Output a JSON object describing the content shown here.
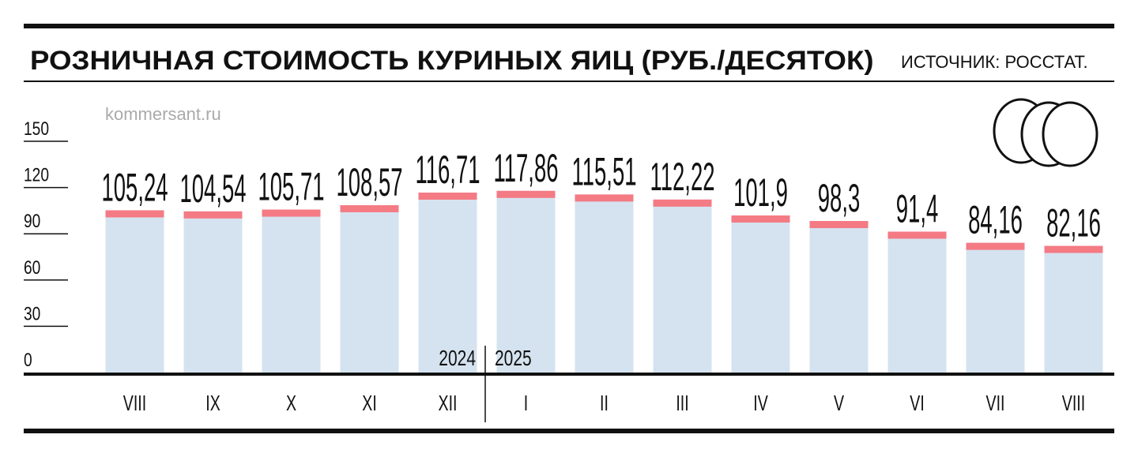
{
  "chart_data": {
    "type": "bar",
    "title": "РОЗНИЧНАЯ СТОИМОСТЬ КУРИНЫХ ЯИЦ (РУБ./ДЕСЯТОК)",
    "source": "ИСТОЧНИК: РОССТАТ.",
    "watermark": "kommersant.ru",
    "categories": [
      "VIII",
      "IX",
      "X",
      "XI",
      "XII",
      "I",
      "II",
      "III",
      "IV",
      "V",
      "VI",
      "VII",
      "VIII"
    ],
    "periods": [
      "2024",
      "2025"
    ],
    "values": [
      105.24,
      104.54,
      105.71,
      108.57,
      116.71,
      117.86,
      115.51,
      112.22,
      101.9,
      98.3,
      91.4,
      84.16,
      82.16
    ],
    "value_labels": [
      "105,24",
      "104,54",
      "105,71",
      "108,57",
      "116,71",
      "117,86",
      "115,51",
      "112,22",
      "101,9",
      "98,3",
      "91,4",
      "84,16",
      "82,16"
    ],
    "color": "#d5e3f0",
    "cap_color": "#f47a84",
    "ylim": [
      0,
      150
    ],
    "yticks": [
      0,
      30,
      60,
      90,
      120,
      150
    ]
  }
}
